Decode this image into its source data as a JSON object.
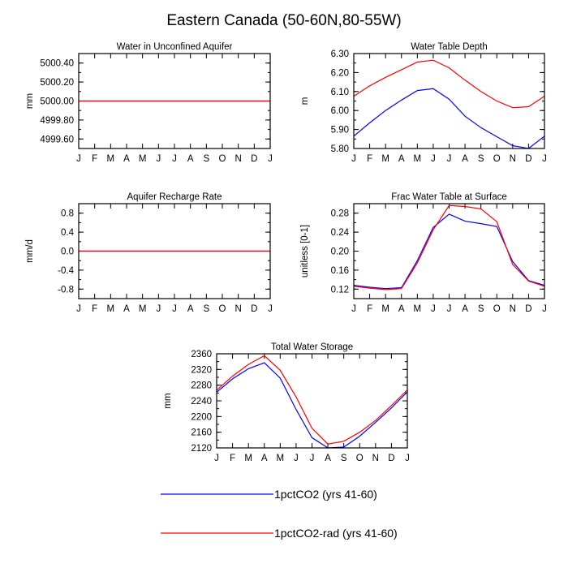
{
  "figure": {
    "title": "Eastern Canada (50-60N,80-55W)"
  },
  "months": [
    "J",
    "F",
    "M",
    "A",
    "M",
    "J",
    "J",
    "A",
    "S",
    "O",
    "N",
    "D",
    "J"
  ],
  "colors": {
    "series1": "#0000ff",
    "series2": "#ff0000"
  },
  "legend": [
    {
      "label": "1pctCO2 (yrs 41-60)",
      "color": "#0000ff"
    },
    {
      "label": "1pctCO2-rad (yrs 41-60)",
      "color": "#ff0000"
    }
  ],
  "chart_data": [
    {
      "type": "line",
      "title": "Water in Unconfined Aquifer",
      "ylabel": "mm",
      "ylim": [
        4999.5,
        5000.5
      ],
      "yticks": [
        4999.6,
        4999.8,
        5000.0,
        5000.2,
        5000.4
      ],
      "ytick_labels": [
        "4999.60",
        "4999.80",
        "5000.00",
        "5000.20",
        "5000.40"
      ],
      "x": [
        "J",
        "F",
        "M",
        "A",
        "M",
        "J",
        "J",
        "A",
        "S",
        "O",
        "N",
        "D",
        "J"
      ],
      "series": [
        {
          "name": "1pctCO2 (yrs 41-60)",
          "values": [
            5000,
            5000,
            5000,
            5000,
            5000,
            5000,
            5000,
            5000,
            5000,
            5000,
            5000,
            5000,
            5000
          ]
        },
        {
          "name": "1pctCO2-rad (yrs 41-60)",
          "values": [
            5000,
            5000,
            5000,
            5000,
            5000,
            5000,
            5000,
            5000,
            5000,
            5000,
            5000,
            5000,
            5000
          ]
        }
      ]
    },
    {
      "type": "line",
      "title": "Water Table Depth",
      "ylabel": "m",
      "ylim": [
        5.8,
        6.3
      ],
      "yticks": [
        5.8,
        5.9,
        6.0,
        6.1,
        6.2,
        6.3
      ],
      "ytick_labels": [
        "5.80",
        "5.90",
        "6.00",
        "6.10",
        "6.20",
        "6.30"
      ],
      "x": [
        "J",
        "F",
        "M",
        "A",
        "M",
        "J",
        "J",
        "A",
        "S",
        "O",
        "N",
        "D",
        "J"
      ],
      "series": [
        {
          "name": "1pctCO2 (yrs 41-60)",
          "values": [
            5.865,
            5.935,
            6.0,
            6.055,
            6.105,
            6.115,
            6.06,
            5.97,
            5.91,
            5.862,
            5.815,
            5.8,
            5.865
          ]
        },
        {
          "name": "1pctCO2-rad (yrs 41-60)",
          "values": [
            6.075,
            6.13,
            6.175,
            6.215,
            6.255,
            6.265,
            6.225,
            6.16,
            6.1,
            6.05,
            6.015,
            6.02,
            6.075
          ]
        }
      ]
    },
    {
      "type": "line",
      "title": "Aquifer Recharge Rate",
      "ylabel": "mm/d",
      "ylim": [
        -1.0,
        1.0
      ],
      "yticks": [
        -0.8,
        -0.4,
        0.0,
        0.4,
        0.8
      ],
      "ytick_labels": [
        "-0.8",
        "-0.4",
        "0.0",
        "0.4",
        "0.8"
      ],
      "x": [
        "J",
        "F",
        "M",
        "A",
        "M",
        "J",
        "J",
        "A",
        "S",
        "O",
        "N",
        "D",
        "J"
      ],
      "series": [
        {
          "name": "1pctCO2 (yrs 41-60)",
          "values": [
            0,
            0,
            0,
            0,
            0,
            0,
            0,
            0,
            0,
            0,
            0,
            0,
            0
          ]
        },
        {
          "name": "1pctCO2-rad (yrs 41-60)",
          "values": [
            0,
            0,
            0,
            0,
            0,
            0,
            0,
            0,
            0,
            0,
            0,
            0,
            0
          ]
        }
      ]
    },
    {
      "type": "line",
      "title": "Frac Water Table at Surface",
      "ylabel": "unitless [0-1]",
      "ylim": [
        0.1,
        0.3
      ],
      "yticks": [
        0.12,
        0.16,
        0.2,
        0.24,
        0.28
      ],
      "ytick_labels": [
        "0.12",
        "0.16",
        "0.20",
        "0.24",
        "0.28"
      ],
      "x": [
        "J",
        "F",
        "M",
        "A",
        "M",
        "J",
        "J",
        "A",
        "S",
        "O",
        "N",
        "D",
        "J"
      ],
      "series": [
        {
          "name": "1pctCO2 (yrs 41-60)",
          "values": [
            0.128,
            0.124,
            0.121,
            0.123,
            0.18,
            0.25,
            0.278,
            0.263,
            0.258,
            0.252,
            0.178,
            0.138,
            0.128
          ]
        },
        {
          "name": "1pctCO2-rad (yrs 41-60)",
          "values": [
            0.126,
            0.122,
            0.119,
            0.121,
            0.175,
            0.245,
            0.296,
            0.294,
            0.289,
            0.262,
            0.172,
            0.137,
            0.126
          ]
        }
      ]
    },
    {
      "type": "line",
      "title": "Total Water Storage",
      "ylabel": "mm",
      "ylim": [
        2120,
        2360
      ],
      "yticks": [
        2120,
        2160,
        2200,
        2240,
        2280,
        2320,
        2360
      ],
      "ytick_labels": [
        "2120",
        "2160",
        "2200",
        "2240",
        "2280",
        "2320",
        "2360"
      ],
      "x": [
        "J",
        "F",
        "M",
        "A",
        "M",
        "J",
        "J",
        "A",
        "S",
        "O",
        "N",
        "D",
        "J"
      ],
      "series": [
        {
          "name": "1pctCO2 (yrs 41-60)",
          "values": [
            2262,
            2296,
            2322,
            2337,
            2298,
            2218,
            2146,
            2120,
            2122,
            2150,
            2185,
            2222,
            2263
          ]
        },
        {
          "name": "1pctCO2-rad (yrs 41-60)",
          "values": [
            2267,
            2303,
            2333,
            2355,
            2318,
            2250,
            2170,
            2130,
            2137,
            2160,
            2190,
            2228,
            2268
          ]
        }
      ]
    }
  ]
}
